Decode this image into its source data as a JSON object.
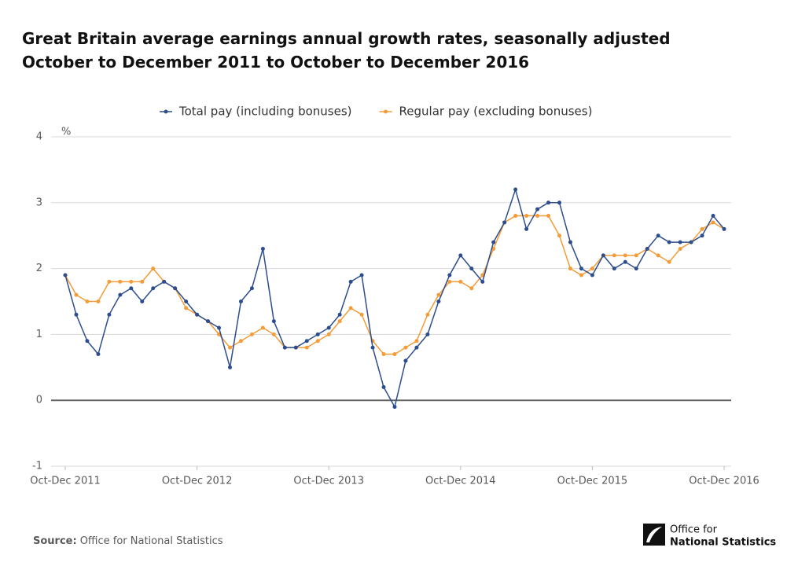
{
  "chart_data": {
    "type": "line",
    "title": "Great Britain average earnings annual growth rates, seasonally adjusted",
    "subtitle": "October to December 2011 to October to December 2016",
    "y_unit": "%",
    "categories": [
      "Oct-Dec 2011",
      null,
      null,
      null,
      null,
      null,
      null,
      null,
      null,
      null,
      null,
      null,
      "Oct-Dec 2012",
      null,
      null,
      null,
      null,
      null,
      null,
      null,
      null,
      null,
      null,
      null,
      "Oct-Dec 2013",
      null,
      null,
      null,
      null,
      null,
      null,
      null,
      null,
      null,
      null,
      null,
      "Oct-Dec 2014",
      null,
      null,
      null,
      null,
      null,
      null,
      null,
      null,
      null,
      null,
      null,
      "Oct-Dec 2015",
      null,
      null,
      null,
      null,
      null,
      null,
      null,
      null,
      null,
      null,
      null,
      "Oct-Dec 2016"
    ],
    "series": [
      {
        "name": "Total pay (including bonuses)",
        "color": "#2d4e8e",
        "values": [
          1.9,
          1.3,
          0.9,
          0.7,
          1.3,
          1.6,
          1.7,
          1.5,
          1.7,
          1.8,
          1.7,
          1.5,
          1.3,
          1.2,
          1.1,
          0.5,
          1.5,
          1.7,
          2.3,
          1.2,
          0.8,
          0.8,
          0.9,
          1.0,
          1.1,
          1.3,
          1.8,
          1.9,
          0.8,
          0.2,
          -0.1,
          0.6,
          0.8,
          1.0,
          1.5,
          1.9,
          2.2,
          2.0,
          1.8,
          2.4,
          2.7,
          3.2,
          2.6,
          2.9,
          3.0,
          3.0,
          2.4,
          2.0,
          1.9,
          2.2,
          2.0,
          2.1,
          2.0,
          2.3,
          2.5,
          2.4,
          2.4,
          2.4,
          2.5,
          2.8,
          2.6
        ]
      },
      {
        "name": "Regular pay (excluding bonuses)",
        "color": "#f39c38",
        "values": [
          1.9,
          1.6,
          1.5,
          1.5,
          1.8,
          1.8,
          1.8,
          1.8,
          2.0,
          1.8,
          1.7,
          1.4,
          1.3,
          1.2,
          1.0,
          0.8,
          0.9,
          1.0,
          1.1,
          1.0,
          0.8,
          0.8,
          0.8,
          0.9,
          1.0,
          1.2,
          1.4,
          1.3,
          0.9,
          0.7,
          0.7,
          0.8,
          0.9,
          1.3,
          1.6,
          1.8,
          1.8,
          1.7,
          1.9,
          2.3,
          2.7,
          2.8,
          2.8,
          2.8,
          2.8,
          2.5,
          2.0,
          1.9,
          2.0,
          2.2,
          2.2,
          2.2,
          2.2,
          2.3,
          2.2,
          2.1,
          2.3,
          2.4,
          2.6,
          2.7,
          2.6
        ]
      }
    ],
    "ylim": [
      -1,
      4
    ],
    "yticks": [
      -1,
      0,
      1,
      2,
      3,
      4
    ],
    "grid": true,
    "legend": "top",
    "source": {
      "label": "Source:",
      "text": "Office for National Statistics"
    },
    "logo": [
      "Office for",
      "National Statistics"
    ]
  }
}
